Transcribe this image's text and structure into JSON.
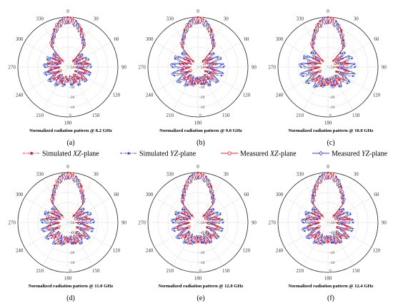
{
  "legend": [
    {
      "name_prefix": "Simulated ",
      "name_italic": "XZ",
      "name_suffix": "-plane",
      "color": "#e8262b",
      "style": "dashdot",
      "marker": "circle-filled"
    },
    {
      "name_prefix": "Simulated ",
      "name_italic": "YZ",
      "name_suffix": "-plane",
      "color": "#2b3fcf",
      "style": "dashdot",
      "marker": "star-filled"
    },
    {
      "name_prefix": "Measured ",
      "name_italic": "XZ",
      "name_suffix": "-plane",
      "color": "#e8262b",
      "style": "solid",
      "marker": "circle-open"
    },
    {
      "name_prefix": "Measured ",
      "name_italic": "YZ",
      "name_suffix": "-plane",
      "color": "#2b3fcf",
      "style": "solid",
      "marker": "diamond-open"
    }
  ],
  "chart_data": [
    {
      "type": "polar",
      "sub_label": "(a)",
      "caption": "Normalized radiation pattern @ 8.2 GHz",
      "angle_ticks": [
        "0",
        "30",
        "60",
        "90",
        "120",
        "150",
        "180",
        "210",
        "240",
        "270",
        "300",
        "330"
      ],
      "radial_ticks": [
        "0",
        "-10",
        "-20",
        "-30",
        "-40",
        "-50"
      ],
      "rlim": [
        -50,
        0
      ],
      "xz_beam": 0.78,
      "yz_beam": 0.72,
      "xz_side": 0.55,
      "yz_side": 0.72,
      "yz_back": 0.35,
      "xz_back": 0.25
    },
    {
      "type": "polar",
      "sub_label": "(b)",
      "caption": "Normalized radiation pattern @ 9.0 GHz",
      "angle_ticks": [
        "0",
        "30",
        "60",
        "90",
        "120",
        "150",
        "180",
        "210",
        "240",
        "270",
        "300",
        "330"
      ],
      "radial_ticks": [
        "0",
        "-10",
        "-20",
        "-30",
        "-40",
        "-50"
      ],
      "rlim": [
        -50,
        0
      ],
      "xz_beam": 0.74,
      "yz_beam": 0.7,
      "xz_side": 0.45,
      "yz_side": 0.85,
      "yz_back": 0.3,
      "xz_back": 0.35
    },
    {
      "type": "polar",
      "sub_label": "(c)",
      "caption": "Normalized radiation pattern @ 10.0 GHz",
      "angle_ticks": [
        "0",
        "30",
        "60",
        "90",
        "120",
        "150",
        "180",
        "210",
        "240",
        "270",
        "300",
        "330"
      ],
      "radial_ticks": [
        "0",
        "-10",
        "-20",
        "-30",
        "-40",
        "-50"
      ],
      "rlim": [
        -50,
        0
      ],
      "xz_beam": 0.72,
      "yz_beam": 0.68,
      "xz_side": 0.55,
      "yz_side": 0.92,
      "yz_back": 0.35,
      "xz_back": 0.4
    },
    {
      "type": "polar",
      "sub_label": "(d)",
      "caption": "Normalized radiation pattern @ 11.0 GHz",
      "angle_ticks": [
        "0",
        "30",
        "60",
        "90",
        "120",
        "150",
        "180",
        "210",
        "240",
        "270",
        "300",
        "330"
      ],
      "radial_ticks": [
        "0",
        "-10",
        "-20",
        "-30",
        "-40",
        "-50"
      ],
      "rlim": [
        -50,
        0
      ],
      "xz_beam": 0.7,
      "yz_beam": 0.7,
      "xz_side": 0.62,
      "yz_side": 0.85,
      "yz_back": 0.5,
      "xz_back": 0.5
    },
    {
      "type": "polar",
      "sub_label": "(e)",
      "caption": "Normalized radiation pattern @ 12.0 GHz",
      "angle_ticks": [
        "0",
        "30",
        "60",
        "90",
        "120",
        "150",
        "180",
        "210",
        "240",
        "270",
        "300",
        "330"
      ],
      "radial_ticks": [
        "0",
        "-10",
        "-20",
        "-30",
        "-40",
        "-50"
      ],
      "rlim": [
        -50,
        0
      ],
      "xz_beam": 0.66,
      "yz_beam": 0.7,
      "xz_side": 0.62,
      "yz_side": 0.82,
      "yz_back": 0.45,
      "xz_back": 0.5
    },
    {
      "type": "polar",
      "sub_label": "(f)",
      "caption": "Normalized radiation pattern @ 12.4 GHz",
      "angle_ticks": [
        "0",
        "30",
        "60",
        "90",
        "120",
        "150",
        "180",
        "210",
        "240",
        "270",
        "300",
        "330"
      ],
      "radial_ticks": [
        "0",
        "-10",
        "-20",
        "-30",
        "-40",
        "-50"
      ],
      "rlim": [
        -50,
        0
      ],
      "xz_beam": 0.64,
      "yz_beam": 0.7,
      "xz_side": 0.62,
      "yz_side": 0.82,
      "yz_back": 0.45,
      "xz_back": 0.5
    }
  ]
}
